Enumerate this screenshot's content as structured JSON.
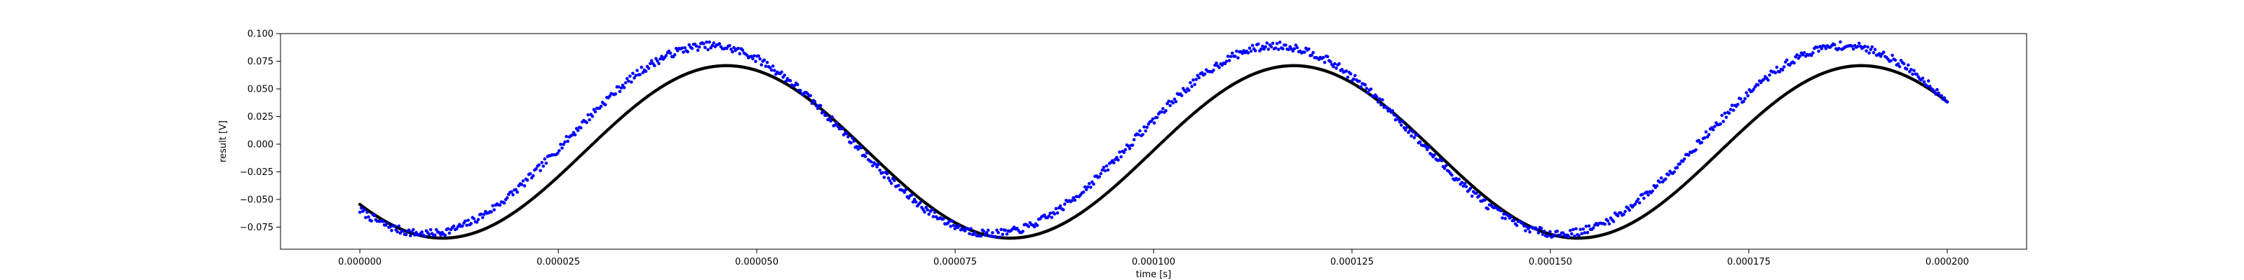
{
  "chart_data": {
    "type": "scatter",
    "title": "",
    "xlabel": "time [s]",
    "ylabel": "result [V]",
    "xlim": [
      -1e-05,
      0.00021
    ],
    "ylim": [
      -0.095,
      0.1
    ],
    "xticks": [
      0,
      2.5e-05,
      5e-05,
      7.5e-05,
      0.0001,
      0.000125,
      0.00015,
      0.000175,
      0.0002
    ],
    "xtick_labels": [
      "0.000000",
      "0.000025",
      "0.000050",
      "0.000075",
      "0.000100",
      "0.000125",
      "0.000150",
      "0.000175",
      "0.000200"
    ],
    "yticks": [
      -0.075,
      -0.05,
      -0.025,
      0,
      0.025,
      0.05,
      0.075,
      0.1
    ],
    "ytick_labels": [
      "−0.075",
      "−0.050",
      "−0.025",
      "0.000",
      "0.025",
      "0.050",
      "0.075",
      "0.100"
    ],
    "grid": false,
    "series": [
      {
        "color": "#000000",
        "marker": "dot",
        "model": {
          "form": "sine",
          "amplitude": 0.078,
          "offset": -0.007,
          "period": 7.15e-05,
          "phase_time": 2.83e-05,
          "noise": 0.0
        },
        "x_range": [
          0,
          0.0002
        ],
        "n_points": 1100
      },
      {
        "color": "#0000ff",
        "marker": "dot",
        "model": {
          "form": "sine",
          "amplitude": 0.085,
          "offset": 0.004,
          "period": 7.15e-05,
          "phase_time": 2.61e-05,
          "noise": 0.0035,
          "noise_seed": 7
        },
        "x_range": [
          0,
          0.0002
        ],
        "n_points": 1100
      }
    ]
  }
}
